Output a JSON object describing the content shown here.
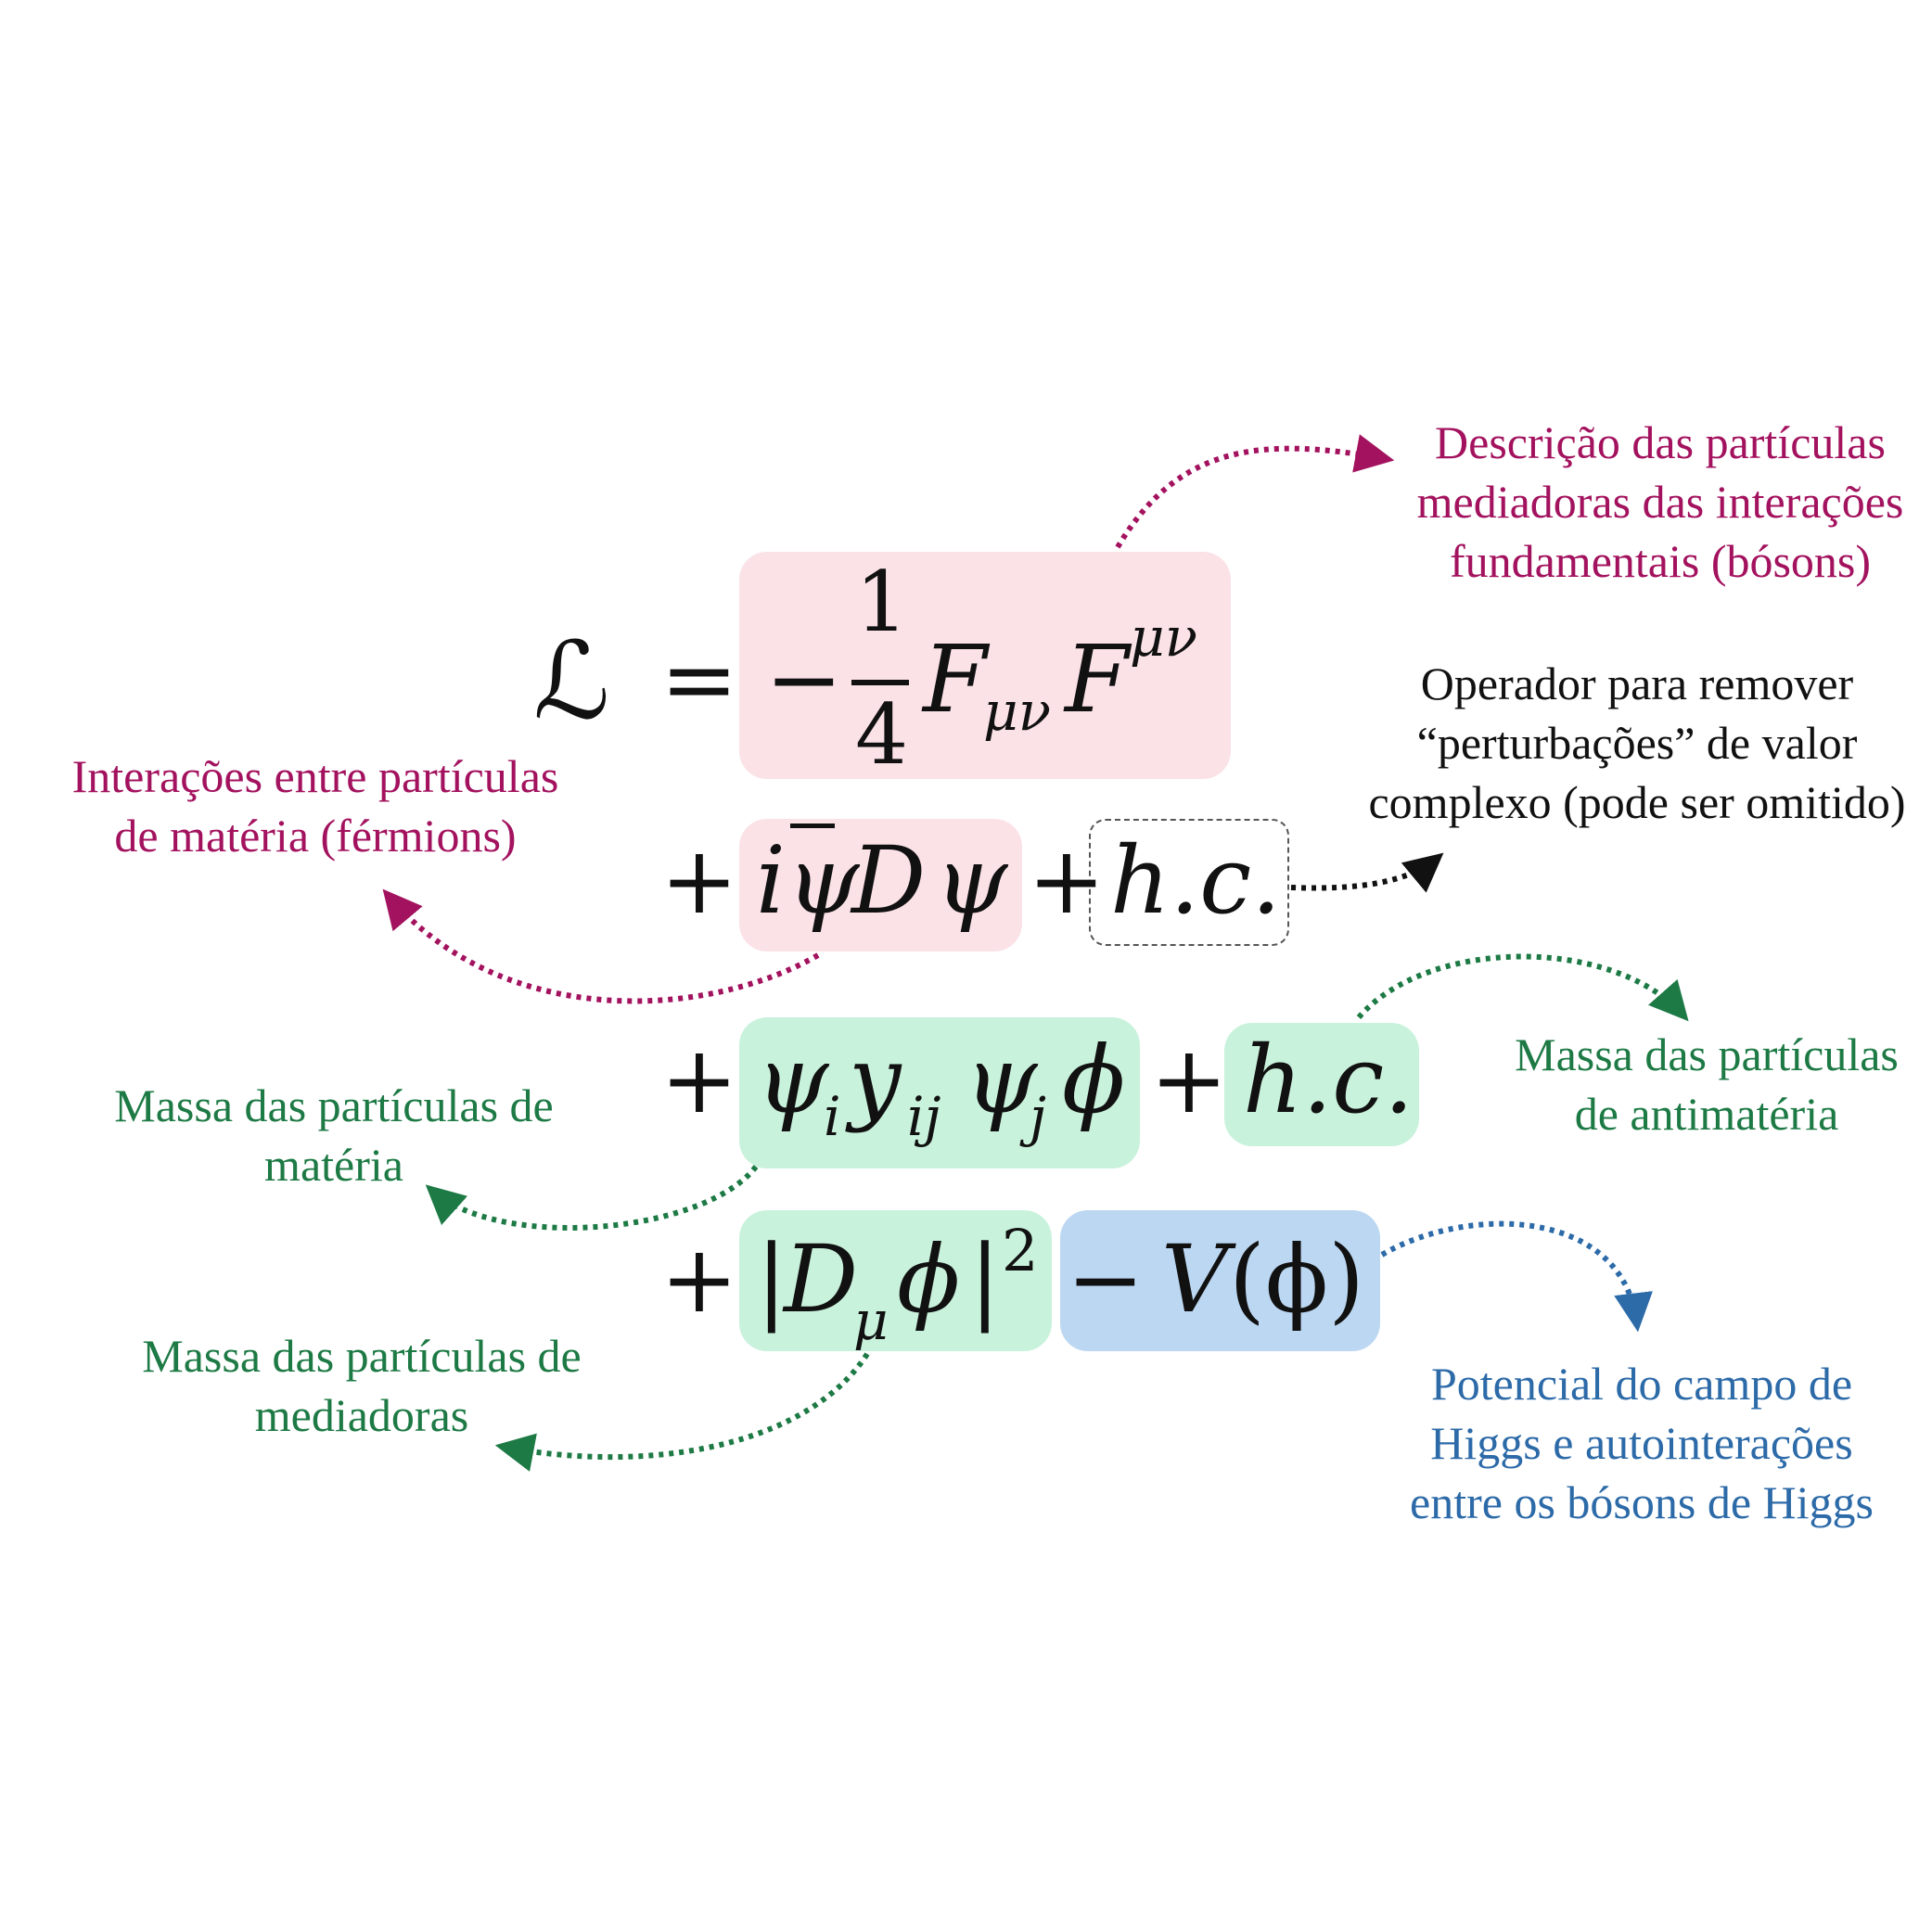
{
  "colors": {
    "magenta": "#a3125e",
    "green": "#1d7a45",
    "blue": "#2c6aa8",
    "black": "#111111",
    "box_pink": "#fbe2e7",
    "box_green": "#c9f2dc",
    "box_blue": "#bcd7f2"
  },
  "equation": {
    "lagrangian": "ℒ",
    "equals": "=",
    "minus": "−",
    "frac_num": "1",
    "frac_den": "4",
    "F": "F",
    "F_sub": "μν",
    "F_sup": "μν",
    "plus": "+",
    "dirac_i": "i",
    "dirac_psibar": "ψ",
    "dirac_D": "D",
    "dirac_psi": "ψ",
    "hc": "h.c.",
    "yuk_psi_i": "ψ",
    "yuk_i": "i",
    "yuk_y": "y",
    "yuk_ij": "ij",
    "yuk_psi_j": "ψ",
    "yuk_j": "j",
    "yuk_phi": "ϕ",
    "higgs_bar_l": "|",
    "higgs_D": "D",
    "higgs_mu": "μ",
    "higgs_phi": "ϕ",
    "higgs_bar_r": "|",
    "higgs_sq": "2",
    "pot_V": "V",
    "pot_arg": "(ϕ)"
  },
  "annotations": {
    "bosons": [
      "Descrição das partículas",
      "mediadoras das interações",
      "fundamentais (bósons)"
    ],
    "hc_operator": [
      "Operador para remover",
      "“perturbações” de valor",
      "complexo (pode ser omitido)"
    ],
    "fermions": [
      "Interações entre partículas",
      "de matéria (férmions)"
    ],
    "antimatter_mass": [
      "Massa das partículas",
      "de antimatéria"
    ],
    "matter_mass": [
      "Massa das partículas de",
      "matéria"
    ],
    "mediator_mass": [
      "Massa das partículas de",
      "mediadoras"
    ],
    "higgs_potential": [
      "Potencial do campo de",
      "Higgs e autointerações",
      "entre os bósons de Higgs"
    ]
  }
}
